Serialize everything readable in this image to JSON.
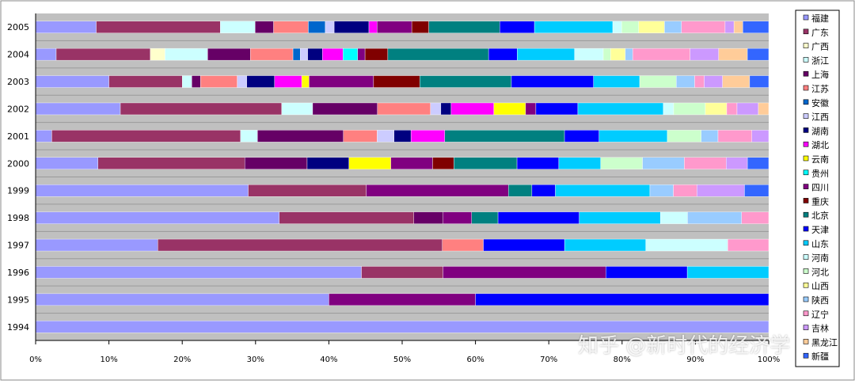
{
  "watermark": "知乎 @新时代的经济学",
  "chart_data": {
    "type": "bar",
    "orientation": "horizontal",
    "stacked": true,
    "normalized": true,
    "title": "",
    "xlabel": "",
    "ylabel": "",
    "xlim": [
      0,
      100
    ],
    "grid": true,
    "legend_position": "right",
    "x_ticks": [
      "0%",
      "10%",
      "20%",
      "30%",
      "40%",
      "50%",
      "60%",
      "70%",
      "80%",
      "90%",
      "100%"
    ],
    "categories": [
      "2005",
      "2004",
      "2003",
      "2002",
      "2001",
      "2000",
      "1999",
      "1998",
      "1997",
      "1996",
      "1995",
      "1994"
    ],
    "series": [
      {
        "name": "福建",
        "color": "#9999ff",
        "values": [
          8.2,
          2.8,
          10,
          11.5,
          2.2,
          8.5,
          28.1,
          33.3,
          15.8,
          40,
          40,
          100
        ]
      },
      {
        "name": "广东",
        "color": "#993366",
        "values": [
          16.8,
          12.8,
          10,
          21.9,
          25.7,
          20,
          15.6,
          18.4,
          36.8,
          10,
          0,
          0
        ]
      },
      {
        "name": "广西",
        "color": "#ffffcc",
        "values": [
          0,
          2,
          0,
          0,
          0,
          0,
          0,
          0,
          0,
          0,
          0,
          0
        ]
      },
      {
        "name": "浙江",
        "color": "#ccffff",
        "values": [
          4.7,
          5.8,
          1.3,
          4.2,
          2.3,
          0,
          0,
          0,
          0,
          0,
          0,
          0
        ]
      },
      {
        "name": "上海",
        "color": "#660066",
        "values": [
          2.5,
          5.8,
          1.2,
          8.8,
          11.7,
          8.5,
          0,
          4,
          0,
          0,
          0,
          0
        ]
      },
      {
        "name": "江苏",
        "color": "#ff8080",
        "values": [
          4.7,
          5.8,
          5,
          7.2,
          4.6,
          0,
          0,
          0,
          5.3,
          0,
          0,
          0
        ]
      },
      {
        "name": "安徽",
        "color": "#0066cc",
        "values": [
          2.3,
          1,
          0,
          0,
          0,
          0,
          0,
          0,
          0,
          0,
          0,
          0
        ]
      },
      {
        "name": "江西",
        "color": "#ccccff",
        "values": [
          1.2,
          1,
          1.3,
          1.4,
          2.3,
          0,
          0,
          0,
          0,
          0,
          0,
          0
        ]
      },
      {
        "name": "湖南",
        "color": "#000080",
        "values": [
          4.7,
          2,
          3.8,
          1.4,
          2.3,
          5.7,
          0,
          0,
          0,
          0,
          0,
          0
        ]
      },
      {
        "name": "湖北",
        "color": "#ff00ff",
        "values": [
          1.1,
          2.8,
          3.7,
          5.8,
          4.6,
          0,
          0,
          0,
          0,
          0,
          0,
          0
        ]
      },
      {
        "name": "云南",
        "color": "#ffff00",
        "values": [
          0,
          0,
          1,
          4.3,
          0,
          5.7,
          0,
          0,
          0,
          0,
          0,
          0
        ]
      },
      {
        "name": "贵州",
        "color": "#00ffff",
        "values": [
          0,
          2,
          0,
          0,
          0,
          0,
          0,
          0,
          0,
          0,
          0,
          0
        ]
      },
      {
        "name": "四川",
        "color": "#800080",
        "values": [
          4.7,
          1,
          8.8,
          1.4,
          0,
          5.7,
          18.8,
          3.9,
          0,
          20,
          20,
          0
        ]
      },
      {
        "name": "重庆",
        "color": "#800000",
        "values": [
          2.3,
          3.1,
          6.3,
          0,
          0,
          2.9,
          0,
          0,
          0,
          0,
          0,
          0
        ]
      },
      {
        "name": "北京",
        "color": "#008080",
        "values": [
          9.6,
          13.7,
          12.5,
          0,
          16.3,
          8.6,
          3.1,
          3.6,
          0,
          0,
          0,
          0
        ]
      },
      {
        "name": "天津",
        "color": "#0000ff",
        "values": [
          4.7,
          3.9,
          11.2,
          5.7,
          4.7,
          5.7,
          3.1,
          11.1,
          10.5,
          10,
          40,
          0
        ]
      },
      {
        "name": "山东",
        "color": "#00ccff",
        "values": [
          10.6,
          7.8,
          6.3,
          11.6,
          9.3,
          5.7,
          12.5,
          11.1,
          10.5,
          10,
          0,
          0
        ]
      },
      {
        "name": "河南",
        "color": "#ccffff",
        "values": [
          1.2,
          3.9,
          0,
          1.4,
          0,
          0,
          0,
          3.7,
          10.6,
          0,
          0,
          0
        ]
      },
      {
        "name": "河北",
        "color": "#ccffcc",
        "values": [
          2.3,
          1,
          5,
          4.3,
          4.6,
          5.7,
          0,
          0,
          0,
          0,
          0,
          0
        ]
      },
      {
        "name": "山西",
        "color": "#ffff99",
        "values": [
          3.5,
          2,
          0,
          2.9,
          0,
          0,
          0,
          0,
          0,
          0,
          0,
          0
        ]
      },
      {
        "name": "陕西",
        "color": "#99ccff",
        "values": [
          2.3,
          1,
          2.5,
          0,
          2.3,
          5.7,
          3.1,
          7.4,
          0,
          0,
          0,
          0
        ]
      },
      {
        "name": "辽宁",
        "color": "#ff99cc",
        "values": [
          5.9,
          7.8,
          1.3,
          1.4,
          4.6,
          5.7,
          3.1,
          3.7,
          5.3,
          0,
          0,
          0
        ]
      },
      {
        "name": "吉林",
        "color": "#cc99ff",
        "values": [
          1.2,
          3.9,
          2.5,
          2.9,
          2.3,
          2.9,
          6.3,
          0,
          0,
          0,
          0,
          0
        ]
      },
      {
        "name": "黑龙江",
        "color": "#ffcc99",
        "values": [
          1.2,
          3.9,
          3.7,
          1.4,
          0,
          0,
          0,
          0,
          0,
          0,
          0,
          0
        ]
      },
      {
        "name": "新疆",
        "color": "#3366ff",
        "values": [
          3.5,
          2.9,
          2.6,
          0,
          0,
          2.9,
          3.2,
          0,
          0,
          0,
          0,
          0
        ]
      }
    ]
  }
}
